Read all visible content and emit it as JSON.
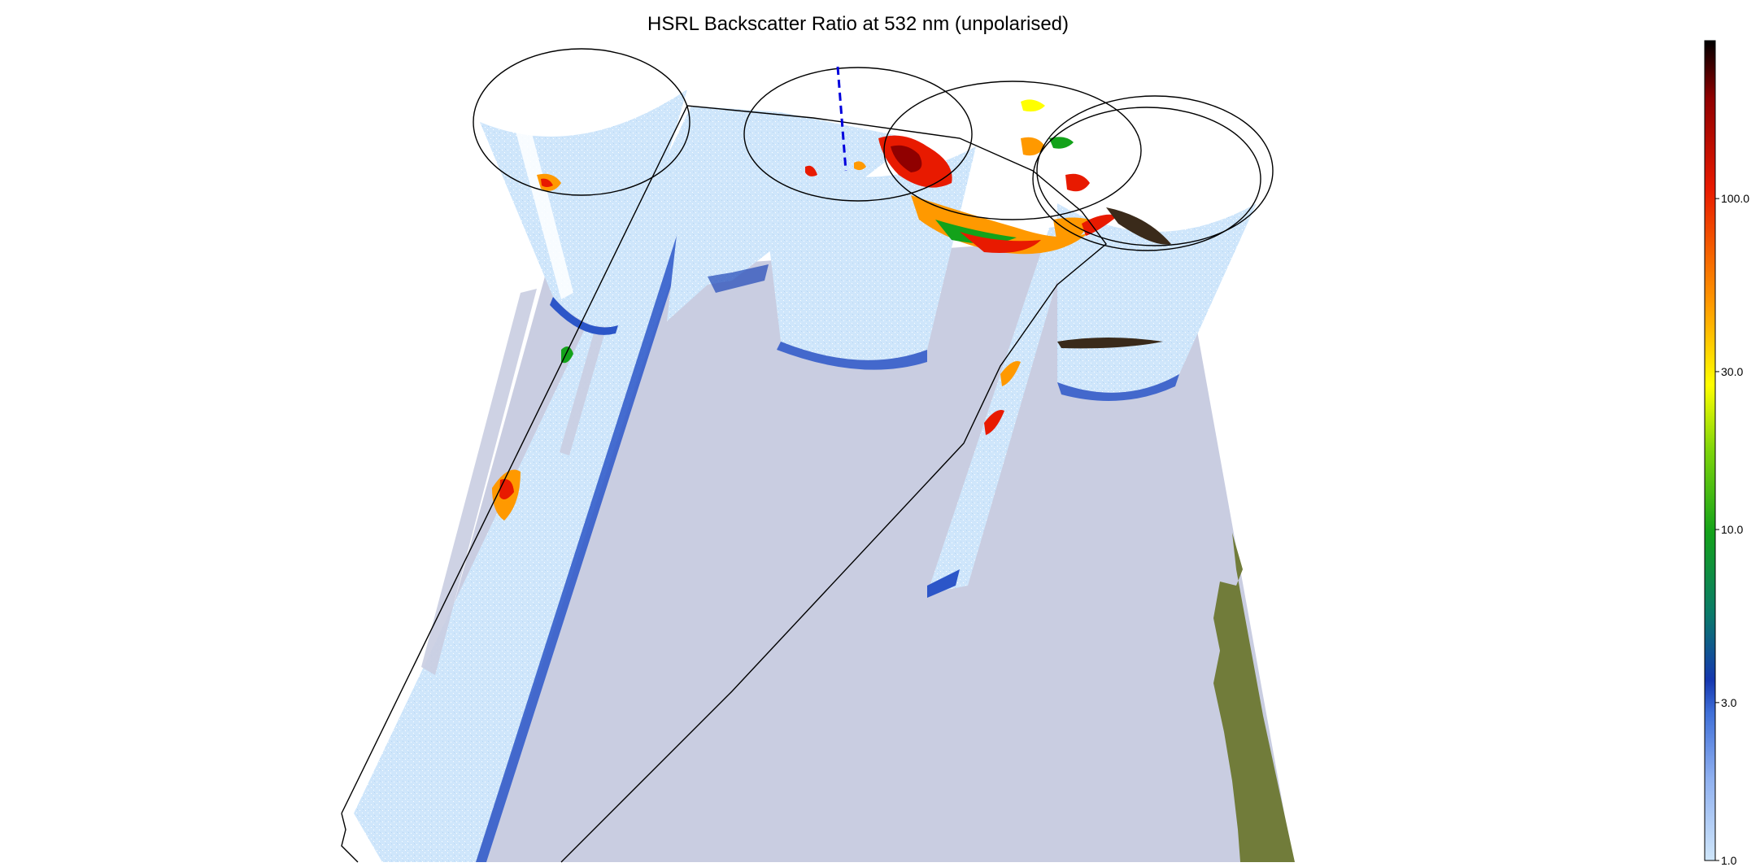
{
  "chart_data": {
    "type": "heatmap",
    "title": "HSRL Backscatter Ratio at 532 nm (unpolarised)",
    "colorbar": {
      "scale": "log",
      "range": [
        1.0,
        300.0
      ],
      "ticks": [
        {
          "value": 1.0,
          "label": "1.0"
        },
        {
          "value": 3.0,
          "label": "3.0"
        },
        {
          "value": 10.0,
          "label": "10.0"
        },
        {
          "value": 30.0,
          "label": "30.0"
        },
        {
          "value": 100.0,
          "label": "100.0"
        }
      ],
      "colors": [
        "#cfe6fa",
        "#3f6fd8",
        "#1537b0",
        "#0a7a6a",
        "#13a21a",
        "#ffff00",
        "#ff9900",
        "#e81a00",
        "#900000",
        "#000000"
      ]
    },
    "colors": {
      "background_curtain": "#cde6fb",
      "ground_plane": "#c9cde1",
      "land": "#717c3a",
      "flight_track": "#000000",
      "marker": "#0000dd"
    }
  }
}
